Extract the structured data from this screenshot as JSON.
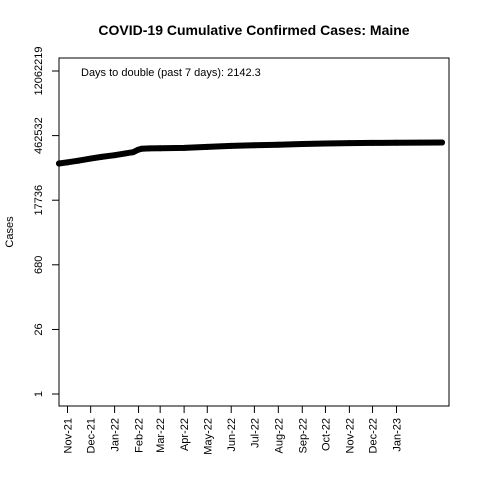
{
  "chart_data": {
    "type": "line",
    "title": "COVID-19 Cumulative Confirmed Cases: Maine",
    "ylabel": "Cases",
    "xlabel": "",
    "y_scale": "log",
    "ylim": [
      1,
      12062219
    ],
    "y_ticks": [
      {
        "value": 1,
        "label": "1"
      },
      {
        "value": 26,
        "label": "26"
      },
      {
        "value": 680,
        "label": "680"
      },
      {
        "value": 17736,
        "label": "17736"
      },
      {
        "value": 462532,
        "label": "462532"
      },
      {
        "value": 12062219,
        "label": "12062219"
      }
    ],
    "xlim": [
      "2021-10-21",
      "2023-03-10"
    ],
    "x_ticks": [
      {
        "value": "2021-11-01",
        "label": "Nov-21"
      },
      {
        "value": "2021-12-01",
        "label": "Dec-21"
      },
      {
        "value": "2022-01-01",
        "label": "Jan-22"
      },
      {
        "value": "2022-02-01",
        "label": "Feb-22"
      },
      {
        "value": "2022-03-01",
        "label": "Mar-22"
      },
      {
        "value": "2022-04-01",
        "label": "Apr-22"
      },
      {
        "value": "2022-05-01",
        "label": "May-22"
      },
      {
        "value": "2022-06-01",
        "label": "Jun-22"
      },
      {
        "value": "2022-07-01",
        "label": "Jul-22"
      },
      {
        "value": "2022-08-01",
        "label": "Aug-22"
      },
      {
        "value": "2022-09-01",
        "label": "Sep-22"
      },
      {
        "value": "2022-10-01",
        "label": "Oct-22"
      },
      {
        "value": "2022-11-01",
        "label": "Nov-22"
      },
      {
        "value": "2022-12-01",
        "label": "Dec-22"
      },
      {
        "value": "2023-01-01",
        "label": "Jan-23"
      }
    ],
    "series": [
      {
        "color": "#000000",
        "points": [
          {
            "x": "2021-10-21",
            "y": 113000
          },
          {
            "x": "2021-11-01",
            "y": 120000
          },
          {
            "x": "2021-11-15",
            "y": 130000
          },
          {
            "x": "2021-12-01",
            "y": 145000
          },
          {
            "x": "2021-12-15",
            "y": 158000
          },
          {
            "x": "2022-01-01",
            "y": 172000
          },
          {
            "x": "2022-01-15",
            "y": 188000
          },
          {
            "x": "2022-01-25",
            "y": 200000
          },
          {
            "x": "2022-01-31",
            "y": 225000
          },
          {
            "x": "2022-02-05",
            "y": 238000
          },
          {
            "x": "2022-02-15",
            "y": 242000
          },
          {
            "x": "2022-03-01",
            "y": 244000
          },
          {
            "x": "2022-04-01",
            "y": 248000
          },
          {
            "x": "2022-05-01",
            "y": 262000
          },
          {
            "x": "2022-06-01",
            "y": 275000
          },
          {
            "x": "2022-07-01",
            "y": 285000
          },
          {
            "x": "2022-08-01",
            "y": 292000
          },
          {
            "x": "2022-09-01",
            "y": 302000
          },
          {
            "x": "2022-10-01",
            "y": 310000
          },
          {
            "x": "2022-11-01",
            "y": 316000
          },
          {
            "x": "2022-12-01",
            "y": 320000
          },
          {
            "x": "2023-01-01",
            "y": 323000
          },
          {
            "x": "2023-02-01",
            "y": 325000
          },
          {
            "x": "2023-03-01",
            "y": 326000
          }
        ]
      }
    ],
    "annotation": "Days to double (past 7 days): 2142.3",
    "grid": false
  }
}
